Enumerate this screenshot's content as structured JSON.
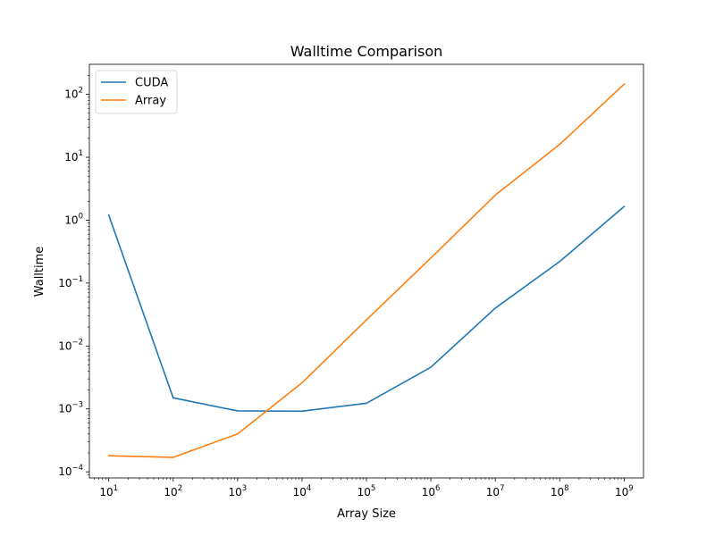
{
  "chart_data": {
    "type": "line",
    "title": "Walltime Comparison",
    "xlabel": "Array Size",
    "ylabel": "Walltime",
    "x_scale": "log",
    "y_scale": "log",
    "xlim": [
      5,
      2000000000
    ],
    "ylim": [
      8e-05,
      300
    ],
    "x": [
      10,
      100,
      1000,
      10000,
      100000,
      1000000,
      10000000,
      100000000,
      1000000000
    ],
    "x_ticks": [
      {
        "value": 10,
        "base": "10",
        "exp": "1"
      },
      {
        "value": 100,
        "base": "10",
        "exp": "2"
      },
      {
        "value": 1000,
        "base": "10",
        "exp": "3"
      },
      {
        "value": 10000,
        "base": "10",
        "exp": "4"
      },
      {
        "value": 100000,
        "base": "10",
        "exp": "5"
      },
      {
        "value": 1000000,
        "base": "10",
        "exp": "6"
      },
      {
        "value": 10000000,
        "base": "10",
        "exp": "7"
      },
      {
        "value": 100000000,
        "base": "10",
        "exp": "8"
      },
      {
        "value": 1000000000,
        "base": "10",
        "exp": "9"
      }
    ],
    "y_ticks": [
      {
        "value": 0.0001,
        "base": "10",
        "exp": "−4"
      },
      {
        "value": 0.001,
        "base": "10",
        "exp": "−3"
      },
      {
        "value": 0.01,
        "base": "10",
        "exp": "−2"
      },
      {
        "value": 0.1,
        "base": "10",
        "exp": "−1"
      },
      {
        "value": 1,
        "base": "10",
        "exp": "0"
      },
      {
        "value": 10,
        "base": "10",
        "exp": "1"
      },
      {
        "value": 100,
        "base": "10",
        "exp": "2"
      }
    ],
    "series": [
      {
        "name": "CUDA",
        "color": "#1f77b4",
        "values": [
          1.2,
          0.0015,
          0.00093,
          0.00092,
          0.00123,
          0.0046,
          0.04,
          0.22,
          1.65
        ]
      },
      {
        "name": "Array",
        "color": "#ff7f0e",
        "values": [
          0.00018,
          0.00017,
          0.0004,
          0.0026,
          0.026,
          0.25,
          2.5,
          16,
          145
        ]
      }
    ],
    "legend_position": "top-left",
    "grid": false
  }
}
